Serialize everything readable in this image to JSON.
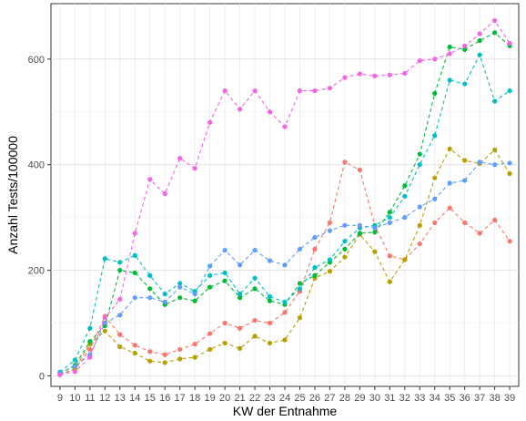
{
  "chart_data": {
    "type": "line",
    "title": "",
    "xlabel": "KW der Entnahme",
    "ylabel": "Anzahl Tests/100000",
    "x": [
      9,
      10,
      11,
      12,
      13,
      14,
      15,
      16,
      17,
      18,
      19,
      20,
      21,
      22,
      23,
      24,
      25,
      26,
      27,
      28,
      29,
      30,
      31,
      32,
      33,
      34,
      35,
      36,
      37,
      38,
      39
    ],
    "xlim": [
      8.4,
      39.6
    ],
    "ylim": [
      -20,
      705
    ],
    "y_ticks": [
      0,
      200,
      400,
      600
    ],
    "grid": true,
    "legend": "none",
    "line_style": "dashed",
    "series": [
      {
        "color": "#F8766D",
        "values": [
          3,
          12,
          50,
          113,
          78,
          58,
          46,
          40,
          50,
          60,
          80,
          100,
          90,
          105,
          100,
          120,
          160,
          240,
          290,
          405,
          390,
          285,
          227,
          220,
          250,
          290,
          318,
          290,
          270,
          295,
          255
        ]
      },
      {
        "color": "#B79F00",
        "values": [
          2,
          14,
          60,
          85,
          55,
          43,
          28,
          25,
          32,
          35,
          50,
          62,
          52,
          75,
          62,
          68,
          110,
          185,
          198,
          225,
          268,
          235,
          178,
          220,
          285,
          375,
          430,
          408,
          402,
          428,
          383
        ]
      },
      {
        "color": "#00BA38",
        "values": [
          4,
          20,
          65,
          95,
          200,
          195,
          165,
          135,
          148,
          142,
          168,
          180,
          148,
          165,
          142,
          135,
          175,
          190,
          215,
          240,
          270,
          272,
          310,
          360,
          420,
          535,
          623,
          618,
          635,
          650,
          625
        ]
      },
      {
        "color": "#00BFC4",
        "values": [
          7,
          30,
          90,
          222,
          215,
          228,
          190,
          155,
          175,
          160,
          190,
          195,
          155,
          185,
          150,
          140,
          165,
          205,
          220,
          255,
          280,
          285,
          300,
          340,
          400,
          455,
          560,
          553,
          608,
          520,
          540
        ]
      },
      {
        "color": "#619CFF",
        "values": [
          5,
          18,
          40,
          100,
          115,
          148,
          148,
          140,
          168,
          155,
          208,
          238,
          210,
          238,
          218,
          210,
          240,
          262,
          275,
          285,
          285,
          280,
          290,
          300,
          320,
          335,
          365,
          370,
          405,
          400,
          403
        ]
      },
      {
        "color": "#F564E3",
        "values": [
          2,
          8,
          35,
          110,
          145,
          270,
          372,
          345,
          412,
          393,
          480,
          540,
          505,
          540,
          500,
          472,
          540,
          540,
          545,
          565,
          572,
          568,
          570,
          573,
          597,
          600,
          610,
          625,
          648,
          673,
          630
        ]
      }
    ]
  }
}
